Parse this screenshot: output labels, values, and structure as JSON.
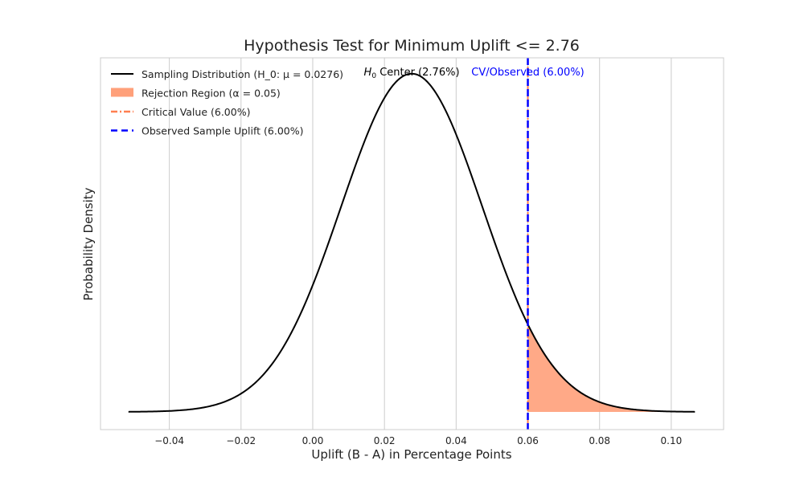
{
  "chart_data": {
    "type": "line",
    "title": "Hypothesis Test for Minimum Uplift <= 2.76",
    "xlabel": "Uplift (B - A) in Percentage Points",
    "ylabel": "Probability Density",
    "xlim": [
      -0.0592,
      0.1146
    ],
    "ylim": [
      -1.06,
      21.2
    ],
    "xticks": [
      -0.04,
      -0.02,
      0.0,
      0.02,
      0.04,
      0.06,
      0.08,
      0.1
    ],
    "xtick_labels": [
      "−0.04",
      "−0.02",
      "0.00",
      "0.02",
      "0.04",
      "0.06",
      "0.08",
      "0.10"
    ],
    "grid": true,
    "distribution": {
      "mean": 0.0276,
      "std": 0.0197,
      "x_range": [
        -0.0514,
        0.1066
      ]
    },
    "critical_value": 0.06,
    "observed_value": 0.06,
    "legend_placement": "top-left",
    "legend": [
      {
        "label": "Sampling Distribution (H_0: μ = 0.0276)",
        "style": "line",
        "color": "#000000"
      },
      {
        "label": "Rejection Region (α = 0.05)",
        "style": "patch",
        "color": "#FFA07A"
      },
      {
        "label": "Critical Value (6.00%)",
        "style": "dashdot",
        "color": "#FF7F50"
      },
      {
        "label": "Observed Sample Uplift (6.00%)",
        "style": "dashed",
        "color": "#0000FF"
      }
    ],
    "annotations": [
      {
        "text_sub_prefix": "H",
        "text_sub": "0",
        "text": " Center (2.76%)",
        "x": 0.0276,
        "color": "#000000"
      },
      {
        "text": "CV/Observed (6.00%)",
        "x": 0.06,
        "color": "#0000FF"
      }
    ]
  }
}
